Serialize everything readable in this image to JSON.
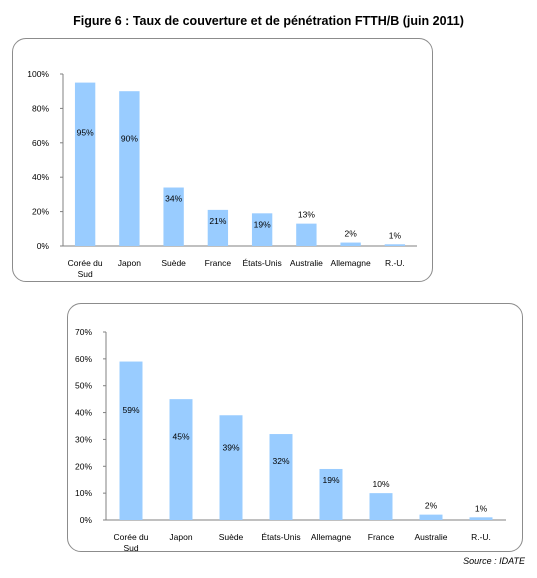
{
  "figure": {
    "title": "Figure 6 : Taux de couverture et de pénétration FTTH/B (juin 2011)",
    "source": "Source : IDATE"
  },
  "colors": {
    "bar": "#99ccff",
    "axis": "#808080",
    "border": "#8c8c8c"
  },
  "chart_data": [
    {
      "type": "bar",
      "title": "",
      "xlabel": "",
      "ylabel": "",
      "ylim": [
        0,
        100
      ],
      "yticks": [
        "0%",
        "20%",
        "40%",
        "60%",
        "80%",
        "100%"
      ],
      "yticks_values": [
        0,
        20,
        40,
        60,
        80,
        100
      ],
      "categories": [
        "Corée du Sud",
        "Japon",
        "Suède",
        "France",
        "États-Unis",
        "Australie",
        "Allemagne",
        "R.-U."
      ],
      "values": [
        95,
        90,
        34,
        21,
        19,
        13,
        2,
        1
      ],
      "data_labels": [
        "95%",
        "90%",
        "34%",
        "21%",
        "19%",
        "13%",
        "2%",
        "1%"
      ],
      "grid": false,
      "legend": "none"
    },
    {
      "type": "bar",
      "title": "",
      "xlabel": "",
      "ylabel": "",
      "ylim": [
        0,
        70
      ],
      "yticks": [
        "0%",
        "10%",
        "20%",
        "30%",
        "40%",
        "50%",
        "60%",
        "70%"
      ],
      "yticks_values": [
        0,
        10,
        20,
        30,
        40,
        50,
        60,
        70
      ],
      "categories": [
        "Corée du Sud",
        "Japon",
        "Suède",
        "États-Unis",
        "Allemagne",
        "France",
        "Australie",
        "R.-U."
      ],
      "values": [
        59,
        45,
        39,
        32,
        19,
        10,
        2,
        1
      ],
      "data_labels": [
        "59%",
        "45%",
        "39%",
        "32%",
        "19%",
        "10%",
        "2%",
        "1%"
      ],
      "grid": false,
      "legend": "none"
    }
  ]
}
